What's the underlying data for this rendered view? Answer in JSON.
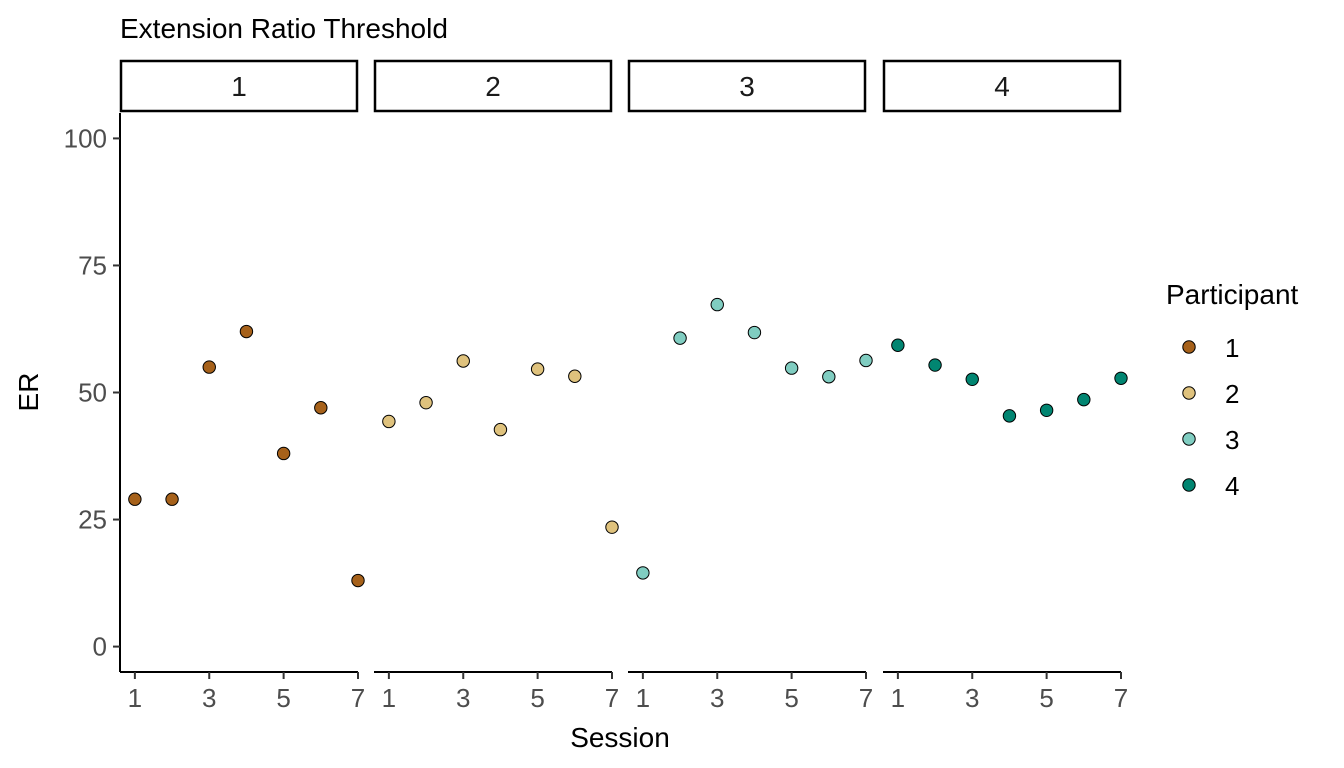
{
  "chart_data": {
    "type": "scatter",
    "title": "Extension Ratio Threshold",
    "xlabel": "Session",
    "ylabel": "ER",
    "ylim": [
      -5,
      105
    ],
    "yticks": [
      0,
      25,
      50,
      75,
      100
    ],
    "ytick_labels": [
      "0",
      "25",
      "50",
      "75",
      "100"
    ],
    "xlim": [
      0.6,
      7
    ],
    "xticks": [
      1,
      3,
      5,
      7
    ],
    "xtick_labels": [
      "1",
      "3",
      "5",
      "7"
    ],
    "legend": {
      "title": "Participant",
      "position": "right",
      "entries": [
        {
          "label": "1",
          "color": "#a6611a"
        },
        {
          "label": "2",
          "color": "#dfc27d"
        },
        {
          "label": "3",
          "color": "#80cdc1"
        },
        {
          "label": "4",
          "color": "#018571"
        }
      ]
    },
    "facets": [
      {
        "strip": "1",
        "participant": "1",
        "color": "#a6611a",
        "x": [
          1,
          2,
          3,
          4,
          5,
          6,
          7
        ],
        "y": [
          29,
          29,
          55,
          62,
          38,
          47,
          13
        ]
      },
      {
        "strip": "2",
        "participant": "2",
        "color": "#dfc27d",
        "x": [
          1,
          2,
          3,
          4,
          5,
          6,
          7
        ],
        "y": [
          44.3,
          48,
          56.2,
          42.7,
          54.6,
          53.2,
          23.5
        ]
      },
      {
        "strip": "3",
        "participant": "3",
        "color": "#80cdc1",
        "x": [
          1,
          2,
          3,
          4,
          5,
          6,
          7
        ],
        "y": [
          14.5,
          60.7,
          67.3,
          61.8,
          54.8,
          53.1,
          56.3
        ]
      },
      {
        "strip": "4",
        "participant": "4",
        "color": "#018571",
        "x": [
          1,
          2,
          3,
          4,
          5,
          6,
          7
        ],
        "y": [
          59.3,
          55.4,
          52.6,
          45.4,
          46.5,
          48.6,
          52.8
        ]
      }
    ]
  }
}
